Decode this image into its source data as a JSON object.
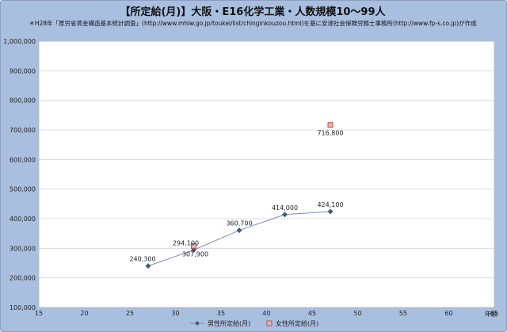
{
  "chart_data": {
    "type": "scatter",
    "title": "【所定給(月)】大阪・E16化学工業・人数規模10～99人",
    "subtitle": "＊H28年「厚労省賃金構造基本統計調査」(http://www.mhlw.go.jp/toukei/list/chinginkouzou.html)を基に安達社会保険労務士事務所(http://www.fp-s.co.jp)が作成",
    "xlabel": "年齢",
    "ylabel": "",
    "xlim": [
      15,
      65
    ],
    "ylim": [
      100000,
      1000000
    ],
    "x_ticks": [
      "15",
      "20",
      "25",
      "30",
      "35",
      "40",
      "45",
      "50",
      "55",
      "60",
      "65"
    ],
    "y_ticks": [
      "100,000",
      "200,000",
      "300,000",
      "400,000",
      "500,000",
      "600,000",
      "700,000",
      "800,000",
      "900,000",
      "1,000,000"
    ],
    "grid": "horizontal",
    "legend_position": "bottom",
    "series": [
      {
        "name": "男性所定給(月)",
        "color": "#3b5e8c",
        "marker": "diamond",
        "line": true,
        "x": [
          27,
          32,
          37,
          42,
          47
        ],
        "y": [
          240300,
          294100,
          360700,
          414000,
          424100
        ],
        "labels": [
          "240,300",
          "294,100",
          "360,700",
          "414,000",
          "424,100"
        ]
      },
      {
        "name": "女性所定給(月)",
        "color": "#c0504d",
        "marker": "square",
        "line": false,
        "x": [
          32,
          47
        ],
        "y": [
          307900,
          716800
        ],
        "labels": [
          "307,900",
          "716,800"
        ]
      }
    ]
  }
}
